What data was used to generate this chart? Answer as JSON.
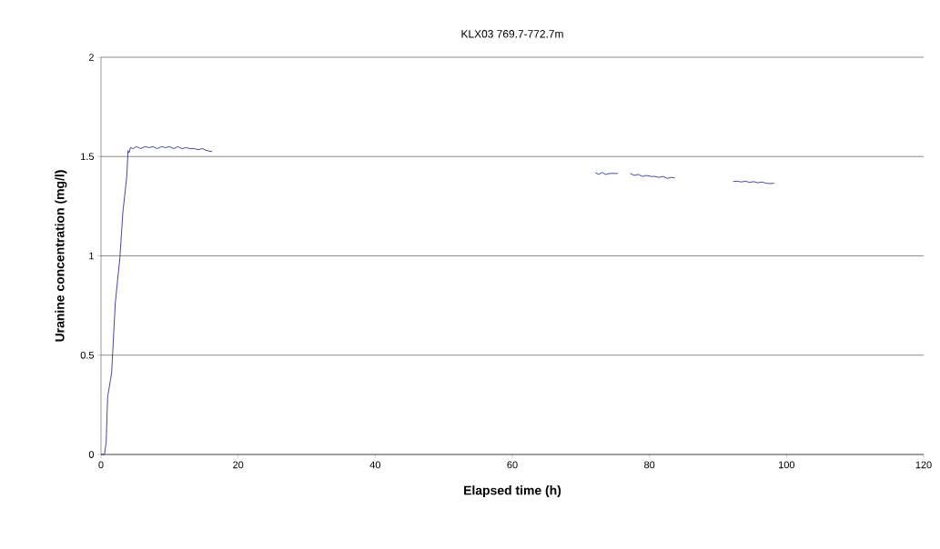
{
  "chart_data": {
    "type": "line",
    "title": "KLX03 769.7-772.7m",
    "xlabel": "Elapsed time (h)",
    "ylabel": "Uranine concentration (mg/l)",
    "xlim": [
      0,
      120
    ],
    "xticks": [
      0,
      20,
      40,
      60,
      80,
      100,
      120
    ],
    "ylim": [
      0,
      2
    ],
    "yticks": [
      0,
      0.5,
      1,
      1.5,
      2
    ],
    "grid": "y",
    "series": [
      {
        "color": "#333399",
        "x": [
          0,
          0.5,
          0.75,
          0.97,
          1.55,
          2.08,
          2.75,
          3.19,
          3.76,
          3.94,
          4.1,
          4.3,
          4.7,
          5.2,
          5.8,
          6.4,
          7.0,
          7.6,
          8.2,
          8.8,
          9.4,
          10.0,
          10.6,
          11.2,
          11.8,
          12.4,
          13.0,
          13.6,
          14.2,
          14.8,
          15.4,
          16.2,
          30,
          72.1,
          72.6,
          73.1,
          73.6,
          74.2,
          74.8,
          75.4,
          76,
          77.2,
          77.8,
          78.4,
          79.0,
          79.6,
          80.2,
          80.8,
          81.4,
          82.0,
          82.6,
          83.2,
          83.7,
          88,
          92.2,
          92.8,
          93.4,
          94.0,
          94.6,
          95.2,
          95.8,
          96.4,
          97.0,
          97.6,
          98.2
        ],
        "values": [
          0,
          0,
          0.06,
          0.29,
          0.41,
          0.76,
          0.99,
          1.22,
          1.4,
          1.53,
          1.52,
          1.545,
          1.54,
          1.55,
          1.54,
          1.55,
          1.545,
          1.55,
          1.54,
          1.55,
          1.545,
          1.55,
          1.54,
          1.55,
          1.54,
          1.545,
          1.54,
          1.54,
          1.535,
          1.54,
          1.53,
          1.525,
          null,
          1.42,
          1.41,
          1.42,
          1.41,
          1.415,
          1.415,
          1.415,
          null,
          1.415,
          1.405,
          1.41,
          1.4,
          1.405,
          1.4,
          1.4,
          1.395,
          1.4,
          1.39,
          1.395,
          1.393,
          null,
          1.374,
          1.376,
          1.372,
          1.376,
          1.37,
          1.374,
          1.368,
          1.372,
          1.366,
          1.364,
          1.366
        ]
      }
    ]
  }
}
